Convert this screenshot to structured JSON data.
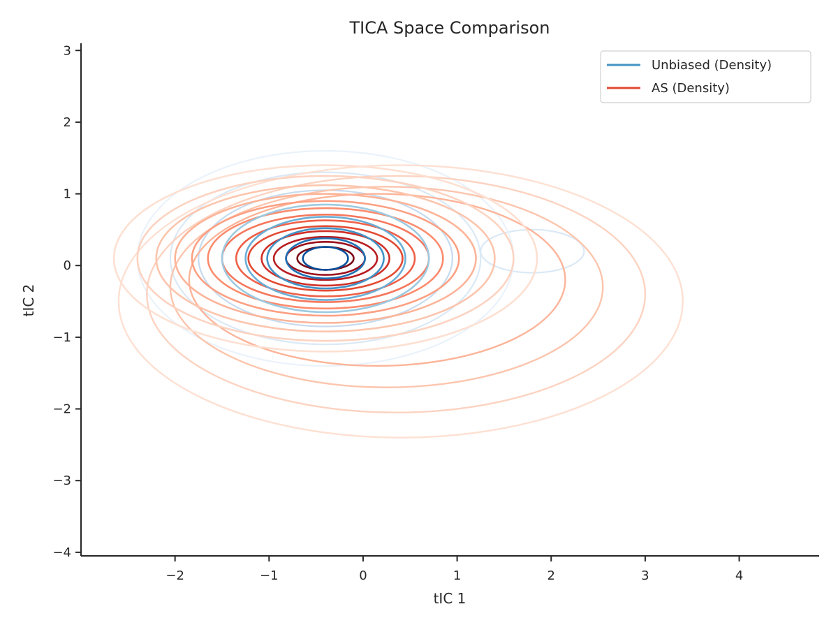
{
  "chart_data": {
    "type": "contour",
    "title": "TICA Space Comparison",
    "xlabel": "tIC 1",
    "ylabel": "tIC 2",
    "xlim": [
      -3.0,
      4.85
    ],
    "ylim": [
      -4.05,
      3.1
    ],
    "xticks": [
      -2,
      -1,
      0,
      1,
      2,
      3,
      4
    ],
    "yticks": [
      -4,
      -3,
      -2,
      -1,
      0,
      1,
      2,
      3
    ],
    "xtick_labels": [
      "−2",
      "−1",
      "0",
      "1",
      "2",
      "3",
      "4"
    ],
    "ytick_labels": [
      "−4",
      "−3",
      "−2",
      "−1",
      "0",
      "1",
      "2",
      "3"
    ],
    "grid": false,
    "legend_position": "top-right",
    "series": [
      {
        "name": "Unbiased (Density)",
        "legend_color": "#4393c3",
        "colormap": "Blues",
        "center": [
          -0.4,
          0.1
        ],
        "contour_levels": [
          {
            "rx": 2.0,
            "ry": 1.5,
            "color": "#eaf2fb"
          },
          {
            "rx": 1.65,
            "ry": 1.2,
            "color": "#dbe9f6"
          },
          {
            "rx": 1.35,
            "ry": 0.95,
            "color": "#c6dbef"
          },
          {
            "rx": 1.1,
            "ry": 0.75,
            "color": "#9ecae1"
          },
          {
            "rx": 0.85,
            "ry": 0.58,
            "color": "#6baed6"
          },
          {
            "rx": 0.62,
            "ry": 0.42,
            "color": "#4292c6"
          },
          {
            "rx": 0.42,
            "ry": 0.28,
            "color": "#2171b5"
          },
          {
            "rx": 0.24,
            "ry": 0.16,
            "color": "#08519c"
          }
        ],
        "secondary_peak": {
          "center": [
            1.8,
            0.2
          ],
          "rx": 0.55,
          "ry": 0.3,
          "color": "#dbe9f6"
        }
      },
      {
        "name": "AS (Density)",
        "legend_color": "#e34a33",
        "colormap": "Reds",
        "center": [
          -0.4,
          0.1
        ],
        "contour_levels": [
          {
            "rx": 2.25,
            "ry": 1.3,
            "color": "#fde0d2"
          },
          {
            "rx": 2.0,
            "ry": 1.15,
            "color": "#fcd3c1"
          },
          {
            "rx": 1.8,
            "ry": 1.02,
            "color": "#fcc5ad"
          },
          {
            "rx": 1.6,
            "ry": 0.9,
            "color": "#fcb499"
          },
          {
            "rx": 1.42,
            "ry": 0.8,
            "color": "#fca083"
          },
          {
            "rx": 1.25,
            "ry": 0.7,
            "color": "#fb8c6e"
          },
          {
            "rx": 1.1,
            "ry": 0.61,
            "color": "#f6775c"
          },
          {
            "rx": 0.95,
            "ry": 0.53,
            "color": "#ef6149"
          },
          {
            "rx": 0.82,
            "ry": 0.45,
            "color": "#e34a33"
          },
          {
            "rx": 0.68,
            "ry": 0.38,
            "color": "#d03028"
          },
          {
            "rx": 0.55,
            "ry": 0.3,
            "color": "#b81d22"
          },
          {
            "rx": 0.42,
            "ry": 0.23,
            "color": "#9b101c"
          },
          {
            "rx": 0.3,
            "ry": 0.16,
            "color": "#7a0816"
          }
        ],
        "outer_lobes": [
          {
            "center": [
              0.4,
              -0.5
            ],
            "rx": 3.0,
            "ry": 1.9,
            "color": "#fde0d2"
          },
          {
            "center": [
              0.35,
              -0.4
            ],
            "rx": 2.65,
            "ry": 1.65,
            "color": "#fcd3c1"
          },
          {
            "center": [
              0.25,
              -0.3
            ],
            "rx": 2.3,
            "ry": 1.4,
            "color": "#fcc5ad"
          },
          {
            "center": [
              0.15,
              -0.2
            ],
            "rx": 2.0,
            "ry": 1.2,
            "color": "#fcb499"
          }
        ]
      }
    ]
  }
}
